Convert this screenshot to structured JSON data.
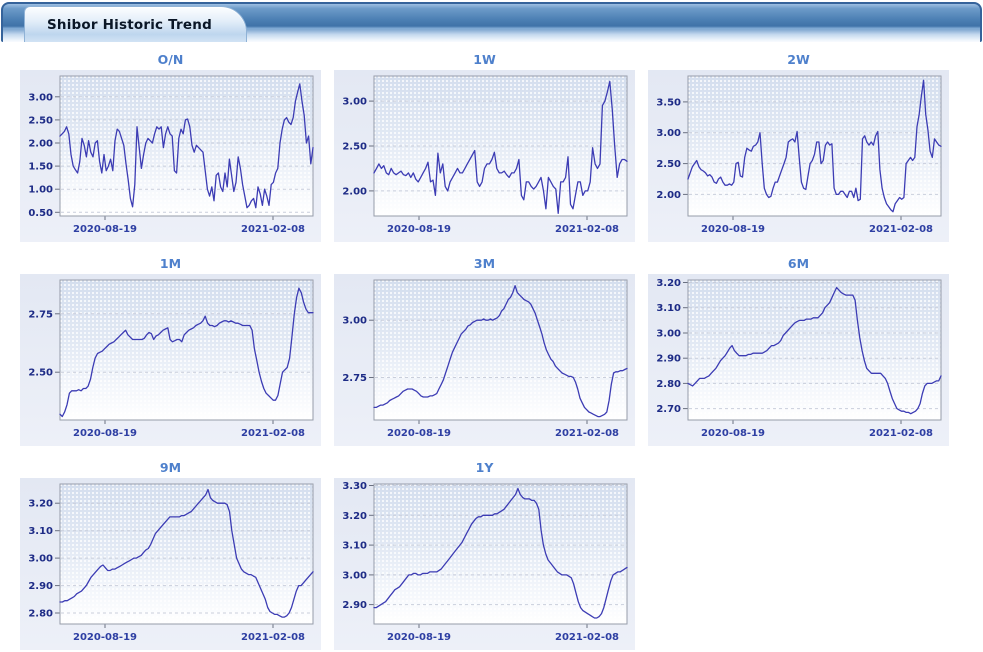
{
  "header": {
    "tab_label": "Shibor Historic Trend"
  },
  "colors": {
    "line": "#3c3cb4",
    "title": "#4e80cc",
    "ytick_label": "#1d2b86",
    "xtick_label": "#2e3fa3",
    "header_border": "#35639b",
    "panel_bg": "#eaedf6"
  },
  "x_axis": {
    "labels": [
      "2020-08-19",
      "2021-02-08"
    ],
    "fractions": [
      0.178,
      0.842
    ]
  },
  "chart_data": [
    {
      "type": "line",
      "title": "O/N",
      "ylim": [
        0.42,
        3.45
      ],
      "yticks": {
        "labels": [
          "0.50",
          "1.00",
          "1.50",
          "2.00",
          "2.50",
          "3.00"
        ],
        "values": [
          0.5,
          1.0,
          1.5,
          2.0,
          2.5,
          3.0
        ]
      },
      "x_tick_labels": [
        "2020-08-19",
        "2021-02-08"
      ],
      "values": [
        2.15,
        2.2,
        2.25,
        2.35,
        2.2,
        1.75,
        1.5,
        1.42,
        1.35,
        1.6,
        2.1,
        1.95,
        1.7,
        2.05,
        1.8,
        1.7,
        2.0,
        2.05,
        1.6,
        1.35,
        1.75,
        1.4,
        1.5,
        1.65,
        1.4,
        2.05,
        2.3,
        2.25,
        2.1,
        1.95,
        1.55,
        1.2,
        0.8,
        0.62,
        1.1,
        2.35,
        1.9,
        1.45,
        1.75,
        2.0,
        2.1,
        2.05,
        2.0,
        2.2,
        2.35,
        2.3,
        2.35,
        1.9,
        2.2,
        2.35,
        2.2,
        2.15,
        1.4,
        1.35,
        2.1,
        2.3,
        2.2,
        2.5,
        2.52,
        2.35,
        1.95,
        1.8,
        1.95,
        1.9,
        1.85,
        1.8,
        1.4,
        1.0,
        0.85,
        1.05,
        0.75,
        1.3,
        1.35,
        1.05,
        0.95,
        1.35,
        1.05,
        1.65,
        1.3,
        0.95,
        1.15,
        1.7,
        1.45,
        1.1,
        0.85,
        0.6,
        0.65,
        0.75,
        0.8,
        0.6,
        1.05,
        0.9,
        0.65,
        1.0,
        0.85,
        0.65,
        1.1,
        1.15,
        1.35,
        1.45,
        2.0,
        2.3,
        2.5,
        2.55,
        2.45,
        2.4,
        2.55,
        2.9,
        3.1,
        3.28,
        2.9,
        2.6,
        2.0,
        2.15,
        1.55,
        1.9
      ]
    },
    {
      "type": "line",
      "title": "1W",
      "ylim": [
        1.72,
        3.28
      ],
      "yticks": {
        "labels": [
          "2.00",
          "2.50",
          "3.00"
        ],
        "values": [
          2.0,
          2.5,
          3.0
        ]
      },
      "x_tick_labels": [
        "2020-08-19",
        "2021-02-08"
      ],
      "values": [
        2.2,
        2.25,
        2.3,
        2.25,
        2.28,
        2.2,
        2.18,
        2.25,
        2.2,
        2.18,
        2.2,
        2.22,
        2.18,
        2.17,
        2.2,
        2.15,
        2.2,
        2.13,
        2.1,
        2.15,
        2.2,
        2.25,
        2.32,
        2.1,
        2.12,
        1.95,
        2.42,
        2.2,
        2.3,
        2.05,
        2.0,
        2.1,
        2.15,
        2.2,
        2.25,
        2.2,
        2.2,
        2.25,
        2.3,
        2.35,
        2.4,
        2.45,
        2.1,
        2.05,
        2.1,
        2.25,
        2.3,
        2.3,
        2.35,
        2.43,
        2.25,
        2.2,
        2.2,
        2.22,
        2.18,
        2.15,
        2.2,
        2.2,
        2.25,
        2.35,
        1.95,
        1.9,
        2.1,
        2.1,
        2.05,
        2.02,
        2.05,
        2.1,
        2.15,
        2.0,
        1.8,
        2.15,
        2.1,
        2.05,
        2.02,
        1.75,
        2.1,
        2.1,
        2.15,
        2.38,
        1.85,
        1.8,
        1.95,
        2.1,
        2.1,
        1.95,
        2.0,
        2.0,
        2.1,
        2.48,
        2.3,
        2.25,
        2.3,
        2.95,
        3.0,
        3.1,
        3.22,
        2.9,
        2.5,
        2.15,
        2.3,
        2.35,
        2.35,
        2.33
      ]
    },
    {
      "type": "line",
      "title": "2W",
      "ylim": [
        1.65,
        3.92
      ],
      "yticks": {
        "labels": [
          "2.00",
          "2.50",
          "3.00",
          "3.50"
        ],
        "values": [
          2.0,
          2.5,
          3.0,
          3.5
        ]
      },
      "x_tick_labels": [
        "2020-08-19",
        "2021-02-08"
      ],
      "values": [
        2.25,
        2.35,
        2.45,
        2.5,
        2.55,
        2.45,
        2.4,
        2.38,
        2.35,
        2.3,
        2.32,
        2.28,
        2.2,
        2.18,
        2.25,
        2.28,
        2.2,
        2.15,
        2.15,
        2.17,
        2.15,
        2.2,
        2.5,
        2.52,
        2.3,
        2.28,
        2.6,
        2.75,
        2.72,
        2.7,
        2.78,
        2.8,
        2.85,
        3.0,
        2.5,
        2.1,
        2.0,
        1.95,
        1.97,
        2.1,
        2.2,
        2.2,
        2.3,
        2.4,
        2.5,
        2.6,
        2.85,
        2.88,
        2.9,
        2.85,
        3.02,
        2.6,
        2.2,
        2.1,
        2.08,
        2.3,
        2.5,
        2.55,
        2.65,
        2.85,
        2.85,
        2.5,
        2.55,
        2.8,
        2.85,
        2.8,
        2.82,
        2.1,
        2.0,
        2.0,
        2.05,
        2.05,
        2.0,
        1.95,
        2.05,
        2.05,
        1.95,
        2.1,
        1.9,
        1.92,
        2.9,
        2.95,
        2.85,
        2.8,
        2.85,
        2.8,
        2.95,
        3.02,
        2.4,
        2.1,
        1.95,
        1.85,
        1.8,
        1.75,
        1.72,
        1.85,
        1.9,
        1.95,
        1.92,
        1.95,
        2.5,
        2.55,
        2.6,
        2.55,
        2.6,
        3.1,
        3.3,
        3.6,
        3.85,
        3.3,
        3.05,
        2.7,
        2.6,
        2.9,
        2.85,
        2.8,
        2.78
      ]
    },
    {
      "type": "line",
      "title": "1M",
      "ylim": [
        2.295,
        2.895
      ],
      "yticks": {
        "labels": [
          "2.50",
          "2.75"
        ],
        "values": [
          2.5,
          2.75
        ]
      },
      "x_tick_labels": [
        "2020-08-19",
        "2021-02-08"
      ],
      "values": [
        2.32,
        2.31,
        2.33,
        2.36,
        2.41,
        2.42,
        2.42,
        2.42,
        2.425,
        2.42,
        2.43,
        2.43,
        2.44,
        2.47,
        2.52,
        2.56,
        2.58,
        2.585,
        2.59,
        2.6,
        2.61,
        2.62,
        2.625,
        2.63,
        2.64,
        2.65,
        2.66,
        2.67,
        2.68,
        2.66,
        2.65,
        2.64,
        2.64,
        2.64,
        2.64,
        2.64,
        2.645,
        2.66,
        2.67,
        2.665,
        2.64,
        2.655,
        2.66,
        2.67,
        2.68,
        2.685,
        2.69,
        2.64,
        2.63,
        2.635,
        2.64,
        2.64,
        2.63,
        2.66,
        2.67,
        2.68,
        2.685,
        2.69,
        2.7,
        2.705,
        2.71,
        2.72,
        2.74,
        2.71,
        2.7,
        2.7,
        2.695,
        2.7,
        2.71,
        2.715,
        2.72,
        2.72,
        2.715,
        2.72,
        2.715,
        2.71,
        2.71,
        2.705,
        2.7,
        2.7,
        2.7,
        2.7,
        2.68,
        2.6,
        2.55,
        2.5,
        2.46,
        2.43,
        2.41,
        2.4,
        2.39,
        2.38,
        2.38,
        2.4,
        2.45,
        2.5,
        2.51,
        2.52,
        2.56,
        2.65,
        2.75,
        2.82,
        2.86,
        2.84,
        2.8,
        2.77,
        2.755,
        2.755,
        2.755
      ]
    },
    {
      "type": "line",
      "title": "3M",
      "ylim": [
        2.565,
        3.175
      ],
      "yticks": {
        "labels": [
          "2.75",
          "3.00"
        ],
        "values": [
          2.75,
          3.0
        ]
      },
      "x_tick_labels": [
        "2020-08-19",
        "2021-02-08"
      ],
      "values": [
        2.62,
        2.62,
        2.625,
        2.63,
        2.63,
        2.635,
        2.64,
        2.65,
        2.655,
        2.66,
        2.665,
        2.67,
        2.68,
        2.69,
        2.695,
        2.7,
        2.7,
        2.7,
        2.695,
        2.69,
        2.68,
        2.67,
        2.665,
        2.665,
        2.665,
        2.67,
        2.67,
        2.675,
        2.68,
        2.7,
        2.72,
        2.74,
        2.77,
        2.8,
        2.83,
        2.86,
        2.88,
        2.9,
        2.92,
        2.94,
        2.95,
        2.96,
        2.975,
        2.98,
        2.99,
        2.995,
        3.0,
        3.0,
        3.0,
        3.005,
        3.0,
        3.0,
        3.005,
        3.0,
        3.005,
        3.01,
        3.02,
        3.04,
        3.05,
        3.07,
        3.09,
        3.1,
        3.12,
        3.15,
        3.12,
        3.11,
        3.1,
        3.09,
        3.085,
        3.08,
        3.07,
        3.05,
        3.03,
        3.0,
        2.97,
        2.94,
        2.9,
        2.87,
        2.85,
        2.83,
        2.82,
        2.8,
        2.79,
        2.78,
        2.77,
        2.765,
        2.76,
        2.755,
        2.755,
        2.75,
        2.73,
        2.7,
        2.66,
        2.64,
        2.62,
        2.61,
        2.6,
        2.595,
        2.59,
        2.585,
        2.58,
        2.58,
        2.585,
        2.59,
        2.6,
        2.65,
        2.72,
        2.77,
        2.775,
        2.775,
        2.78,
        2.78,
        2.785,
        2.79
      ]
    },
    {
      "type": "line",
      "title": "6M",
      "ylim": [
        2.655,
        3.21
      ],
      "yticks": {
        "labels": [
          "2.70",
          "2.80",
          "2.90",
          "3.00",
          "3.10",
          "3.20"
        ],
        "values": [
          2.7,
          2.8,
          2.9,
          3.0,
          3.1,
          3.2
        ]
      },
      "x_tick_labels": [
        "2020-08-19",
        "2021-02-08"
      ],
      "values": [
        2.8,
        2.795,
        2.79,
        2.8,
        2.81,
        2.82,
        2.82,
        2.82,
        2.825,
        2.83,
        2.84,
        2.85,
        2.86,
        2.875,
        2.89,
        2.9,
        2.91,
        2.925,
        2.94,
        2.95,
        2.93,
        2.92,
        2.91,
        2.91,
        2.91,
        2.91,
        2.915,
        2.915,
        2.92,
        2.92,
        2.92,
        2.92,
        2.92,
        2.925,
        2.93,
        2.94,
        2.95,
        2.95,
        2.955,
        2.96,
        2.97,
        2.99,
        3.0,
        3.01,
        3.02,
        3.03,
        3.04,
        3.045,
        3.05,
        3.05,
        3.05,
        3.055,
        3.055,
        3.055,
        3.06,
        3.06,
        3.06,
        3.07,
        3.08,
        3.1,
        3.11,
        3.12,
        3.14,
        3.16,
        3.18,
        3.17,
        3.16,
        3.155,
        3.15,
        3.15,
        3.15,
        3.15,
        3.13,
        3.05,
        2.98,
        2.93,
        2.89,
        2.86,
        2.85,
        2.84,
        2.84,
        2.84,
        2.84,
        2.84,
        2.83,
        2.82,
        2.8,
        2.77,
        2.74,
        2.72,
        2.7,
        2.695,
        2.69,
        2.69,
        2.685,
        2.685,
        2.68,
        2.685,
        2.69,
        2.7,
        2.72,
        2.76,
        2.79,
        2.8,
        2.8,
        2.8,
        2.805,
        2.81,
        2.81,
        2.83
      ]
    },
    {
      "type": "line",
      "title": "9M",
      "ylim": [
        2.76,
        3.27
      ],
      "yticks": {
        "labels": [
          "2.80",
          "2.90",
          "3.00",
          "3.10",
          "3.20"
        ],
        "values": [
          2.8,
          2.9,
          3.0,
          3.1,
          3.2
        ]
      },
      "x_tick_labels": [
        "2020-08-19",
        "2021-02-08"
      ],
      "values": [
        2.84,
        2.84,
        2.845,
        2.845,
        2.85,
        2.855,
        2.86,
        2.87,
        2.875,
        2.88,
        2.89,
        2.9,
        2.915,
        2.93,
        2.94,
        2.95,
        2.96,
        2.97,
        2.975,
        2.965,
        2.955,
        2.955,
        2.96,
        2.96,
        2.965,
        2.97,
        2.975,
        2.98,
        2.985,
        2.99,
        2.995,
        3.0,
        3.0,
        3.005,
        3.01,
        3.02,
        3.03,
        3.035,
        3.05,
        3.07,
        3.09,
        3.1,
        3.11,
        3.12,
        3.13,
        3.14,
        3.15,
        3.15,
        3.15,
        3.15,
        3.15,
        3.155,
        3.155,
        3.16,
        3.165,
        3.17,
        3.18,
        3.19,
        3.2,
        3.21,
        3.22,
        3.23,
        3.25,
        3.22,
        3.21,
        3.205,
        3.2,
        3.2,
        3.2,
        3.2,
        3.195,
        3.17,
        3.1,
        3.05,
        3.0,
        2.98,
        2.96,
        2.95,
        2.945,
        2.94,
        2.94,
        2.935,
        2.93,
        2.91,
        2.89,
        2.87,
        2.85,
        2.82,
        2.805,
        2.8,
        2.795,
        2.795,
        2.79,
        2.785,
        2.785,
        2.79,
        2.8,
        2.82,
        2.85,
        2.88,
        2.9,
        2.9,
        2.91,
        2.92,
        2.93,
        2.94,
        2.95
      ]
    },
    {
      "type": "line",
      "title": "1Y",
      "ylim": [
        2.835,
        3.305
      ],
      "yticks": {
        "labels": [
          "2.90",
          "3.00",
          "3.10",
          "3.20",
          "3.30"
        ],
        "values": [
          2.9,
          3.0,
          3.1,
          3.2,
          3.3
        ]
      },
      "x_tick_labels": [
        "2020-08-19",
        "2021-02-08"
      ],
      "values": [
        2.89,
        2.89,
        2.895,
        2.9,
        2.905,
        2.91,
        2.92,
        2.93,
        2.94,
        2.95,
        2.955,
        2.96,
        2.97,
        2.98,
        2.99,
        3.0,
        3.0,
        3.005,
        3.005,
        3.0,
        3.0,
        3.005,
        3.005,
        3.005,
        3.01,
        3.01,
        3.01,
        3.01,
        3.015,
        3.02,
        3.03,
        3.04,
        3.05,
        3.06,
        3.07,
        3.08,
        3.09,
        3.1,
        3.11,
        3.125,
        3.14,
        3.155,
        3.17,
        3.18,
        3.19,
        3.195,
        3.195,
        3.2,
        3.2,
        3.2,
        3.2,
        3.2,
        3.205,
        3.205,
        3.21,
        3.215,
        3.22,
        3.23,
        3.24,
        3.25,
        3.26,
        3.27,
        3.29,
        3.27,
        3.26,
        3.255,
        3.255,
        3.255,
        3.25,
        3.25,
        3.24,
        3.22,
        3.15,
        3.1,
        3.07,
        3.05,
        3.04,
        3.03,
        3.02,
        3.01,
        3.005,
        3.0,
        3.0,
        3.0,
        2.995,
        2.99,
        2.97,
        2.94,
        2.91,
        2.89,
        2.88,
        2.875,
        2.87,
        2.865,
        2.86,
        2.855,
        2.855,
        2.86,
        2.87,
        2.89,
        2.92,
        2.95,
        2.98,
        3.0,
        3.005,
        3.01,
        3.01,
        3.015,
        3.02,
        3.025
      ]
    }
  ]
}
